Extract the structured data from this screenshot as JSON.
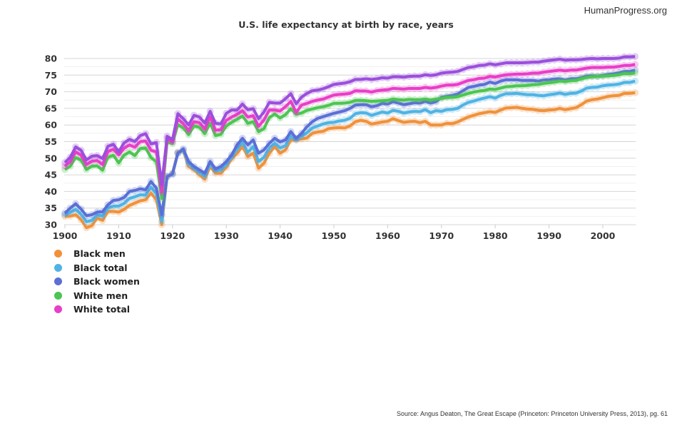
{
  "brand": "HumanProgress.org",
  "source": "Source: Angus Deaton, The Great Escape (Princeton: Princeton University Press, 2013), pg. 61",
  "chart_data": {
    "type": "line",
    "title": "U.S. life expectancy at birth by race, years",
    "xlabel": "",
    "ylabel": "",
    "xlim": [
      1900,
      2006
    ],
    "ylim": [
      30,
      80
    ],
    "xticks": [
      "1900",
      "1910",
      "1920",
      "1930",
      "1940",
      "1950",
      "1960",
      "1970",
      "1980",
      "1990",
      "2000"
    ],
    "yticks": [
      "30",
      "35",
      "40",
      "45",
      "50",
      "55",
      "60",
      "65",
      "70",
      "75",
      "80"
    ],
    "grid": true,
    "legend_position": "bottom-left",
    "x_start": 1900,
    "series": [
      {
        "name": "Black men",
        "color": "#f0913a",
        "values": [
          32.5,
          32.6,
          33.0,
          31.5,
          29.1,
          29.7,
          32.0,
          31.3,
          34.0,
          34.0,
          33.8,
          34.6,
          35.8,
          36.5,
          37.2,
          37.5,
          39.5,
          37.5,
          30.0,
          44.5,
          45.5,
          51.8,
          52.2,
          47.5,
          46.5,
          45.0,
          43.7,
          47.5,
          45.5,
          45.5,
          47.3,
          49.8,
          51.5,
          53.5,
          50.5,
          51.5,
          47.0,
          48.5,
          51.5,
          53.5,
          51.5,
          52.5,
          55.5,
          55.5,
          55.8,
          56.1,
          57.5,
          57.9,
          58.1,
          58.9,
          59.1,
          59.2,
          59.1,
          59.7,
          61.0,
          61.4,
          61.1,
          60.3,
          60.6,
          60.9,
          61.1,
          61.9,
          61.3,
          60.8,
          61.0,
          61.1,
          60.7,
          61.1,
          60.0,
          60.0,
          60.0,
          60.5,
          60.4,
          60.9,
          61.7,
          62.4,
          62.9,
          63.4,
          63.7,
          64.0,
          63.8,
          64.5,
          65.1,
          65.2,
          65.3,
          65.0,
          64.8,
          64.7,
          64.4,
          64.3,
          64.5,
          64.6,
          65.0,
          64.6,
          64.9,
          65.2,
          66.1,
          67.2,
          67.6,
          67.8,
          68.2,
          68.6,
          68.8,
          68.9,
          69.5,
          69.5,
          69.7
        ]
      },
      {
        "name": "Black total",
        "color": "#4fb3e3",
        "values": [
          33.0,
          33.7,
          34.6,
          33.1,
          30.9,
          31.3,
          32.9,
          32.6,
          35.0,
          35.6,
          35.6,
          36.4,
          37.9,
          38.4,
          39.0,
          38.9,
          41.3,
          39.3,
          31.1,
          44.5,
          45.3,
          51.6,
          52.4,
          48.3,
          47.0,
          45.7,
          44.6,
          48.2,
          46.3,
          46.5,
          48.1,
          50.4,
          52.8,
          54.7,
          51.8,
          53.5,
          49.0,
          50.3,
          53.0,
          54.5,
          53.1,
          53.8,
          56.6,
          55.6,
          56.6,
          57.7,
          59.1,
          59.7,
          60.3,
          60.7,
          60.8,
          61.2,
          61.4,
          62.0,
          63.4,
          63.7,
          63.6,
          62.9,
          63.4,
          63.9,
          63.6,
          64.4,
          64.1,
          63.6,
          63.9,
          64.1,
          64.0,
          64.6,
          63.7,
          64.3,
          64.1,
          64.6,
          64.7,
          65.0,
          66.0,
          66.8,
          67.2,
          67.7,
          68.1,
          68.5,
          68.1,
          68.9,
          69.4,
          69.4,
          69.5,
          69.3,
          69.1,
          69.1,
          68.9,
          68.8,
          69.1,
          69.3,
          69.6,
          69.2,
          69.5,
          69.6,
          70.2,
          71.1,
          71.3,
          71.4,
          71.8,
          72.0,
          72.1,
          72.3,
          72.8,
          72.8,
          73.2
        ]
      },
      {
        "name": "Black women",
        "color": "#5b6fd6",
        "values": [
          33.5,
          35.0,
          36.3,
          34.7,
          32.7,
          33.0,
          33.8,
          33.9,
          36.0,
          37.3,
          37.5,
          38.2,
          40.0,
          40.3,
          40.8,
          40.5,
          43.0,
          41.0,
          33.0,
          44.5,
          45.2,
          51.5,
          52.8,
          49.0,
          47.5,
          46.5,
          45.5,
          49.0,
          46.8,
          47.5,
          49.0,
          51.0,
          54.0,
          56.0,
          54.0,
          55.5,
          51.5,
          52.5,
          54.5,
          56.0,
          54.9,
          55.5,
          58.0,
          56.0,
          57.5,
          59.5,
          61.0,
          62.0,
          62.5,
          63.0,
          63.5,
          63.9,
          64.3,
          65.0,
          66.0,
          66.1,
          66.1,
          65.5,
          65.8,
          66.5,
          66.3,
          67.0,
          66.6,
          66.1,
          66.4,
          66.7,
          66.6,
          67.1,
          66.6,
          67.0,
          68.3,
          68.6,
          68.9,
          69.3,
          70.3,
          71.3,
          71.6,
          72.0,
          72.2,
          72.9,
          72.5,
          73.2,
          73.6,
          73.6,
          73.6,
          73.4,
          73.4,
          73.4,
          73.2,
          73.5,
          73.6,
          73.8,
          73.9,
          73.5,
          73.9,
          73.9,
          74.2,
          74.7,
          74.8,
          74.7,
          74.9,
          75.2,
          75.4,
          75.7,
          76.1,
          76.1,
          76.5
        ]
      },
      {
        "name": "White men",
        "color": "#4cc552",
        "values": [
          46.6,
          47.6,
          50.2,
          49.4,
          46.6,
          47.6,
          47.7,
          46.4,
          50.3,
          50.9,
          48.6,
          50.9,
          51.9,
          50.8,
          52.9,
          53.1,
          50.2,
          48.9,
          37.9,
          54.9,
          54.4,
          60.1,
          59.1,
          57.1,
          59.7,
          59.3,
          57.4,
          60.5,
          56.8,
          57.2,
          59.7,
          60.8,
          61.7,
          62.7,
          60.5,
          61.0,
          58.0,
          58.9,
          62.2,
          63.3,
          62.1,
          63.1,
          64.9,
          63.2,
          63.6,
          64.4,
          64.8,
          65.2,
          65.5,
          65.9,
          66.5,
          66.5,
          66.6,
          66.8,
          67.4,
          67.4,
          67.3,
          67.1,
          67.2,
          67.3,
          67.4,
          67.8,
          67.6,
          67.5,
          67.7,
          67.6,
          67.6,
          67.8,
          67.5,
          67.8,
          68.0,
          68.3,
          68.3,
          68.5,
          69.0,
          69.5,
          69.9,
          70.2,
          70.4,
          70.8,
          70.7,
          71.1,
          71.5,
          71.6,
          71.8,
          71.8,
          71.9,
          72.1,
          72.2,
          72.5,
          72.7,
          72.9,
          73.2,
          73.1,
          73.3,
          73.4,
          73.9,
          74.3,
          74.5,
          74.6,
          74.7,
          74.8,
          74.9,
          75.1,
          75.5,
          75.4,
          75.7
        ]
      },
      {
        "name": "White total",
        "color": "#e83ec8",
        "values": [
          47.6,
          49.0,
          51.9,
          50.9,
          48.1,
          49.1,
          49.3,
          48.1,
          52.0,
          52.7,
          51.0,
          53.0,
          54.0,
          53.3,
          55.0,
          55.2,
          52.4,
          51.9,
          39.8,
          55.8,
          54.9,
          61.8,
          60.4,
          58.3,
          61.0,
          60.7,
          58.8,
          62.4,
          58.4,
          58.6,
          61.4,
          62.4,
          63.2,
          64.3,
          62.4,
          62.8,
          59.6,
          61.5,
          64.5,
          64.5,
          64.2,
          65.5,
          67.1,
          63.8,
          66.0,
          66.5,
          67.1,
          67.5,
          67.8,
          68.4,
          69.0,
          69.2,
          69.3,
          69.5,
          70.3,
          70.2,
          70.2,
          69.9,
          70.3,
          70.5,
          70.6,
          71.0,
          70.9,
          70.8,
          71.0,
          71.0,
          71.0,
          71.3,
          71.1,
          71.3,
          71.7,
          72.0,
          72.0,
          72.2,
          72.8,
          73.4,
          73.6,
          74.0,
          74.1,
          74.6,
          74.4,
          74.8,
          75.1,
          75.2,
          75.3,
          75.3,
          75.4,
          75.6,
          75.6,
          75.9,
          76.1,
          76.3,
          76.5,
          76.3,
          76.5,
          76.5,
          76.8,
          77.1,
          77.3,
          77.3,
          77.3,
          77.4,
          77.4,
          77.6,
          77.9,
          77.9,
          78.2
        ]
      },
      {
        "color": "#9b4fdc",
        "values": [
          48.7,
          50.3,
          53.4,
          52.4,
          49.5,
          50.6,
          50.8,
          49.9,
          53.6,
          54.2,
          52.0,
          54.6,
          55.7,
          55.0,
          56.8,
          57.4,
          54.3,
          54.7,
          42.2,
          56.6,
          55.6,
          63.4,
          61.9,
          60.0,
          62.9,
          62.4,
          60.6,
          64.1,
          60.5,
          60.3,
          63.5,
          64.5,
          64.5,
          66.3,
          64.6,
          64.9,
          61.9,
          63.9,
          66.8,
          66.6,
          66.6,
          67.9,
          69.4,
          66.4,
          68.4,
          69.5,
          70.3,
          70.5,
          70.9,
          71.5,
          72.2,
          72.4,
          72.6,
          73.0,
          73.7,
          73.7,
          73.9,
          73.7,
          73.9,
          74.2,
          74.1,
          74.5,
          74.5,
          74.4,
          74.6,
          74.7,
          74.7,
          75.1,
          74.9,
          75.1,
          75.6,
          75.8,
          75.9,
          76.1,
          76.7,
          77.3,
          77.5,
          77.9,
          78.0,
          78.4,
          78.1,
          78.4,
          78.7,
          78.7,
          78.7,
          78.7,
          78.8,
          78.9,
          78.9,
          79.2,
          79.4,
          79.6,
          79.8,
          79.5,
          79.6,
          79.6,
          79.7,
          79.9,
          80.0,
          79.9,
          80.0,
          80.0,
          80.0,
          80.1,
          80.5,
          80.5,
          80.6
        ]
      }
    ]
  }
}
